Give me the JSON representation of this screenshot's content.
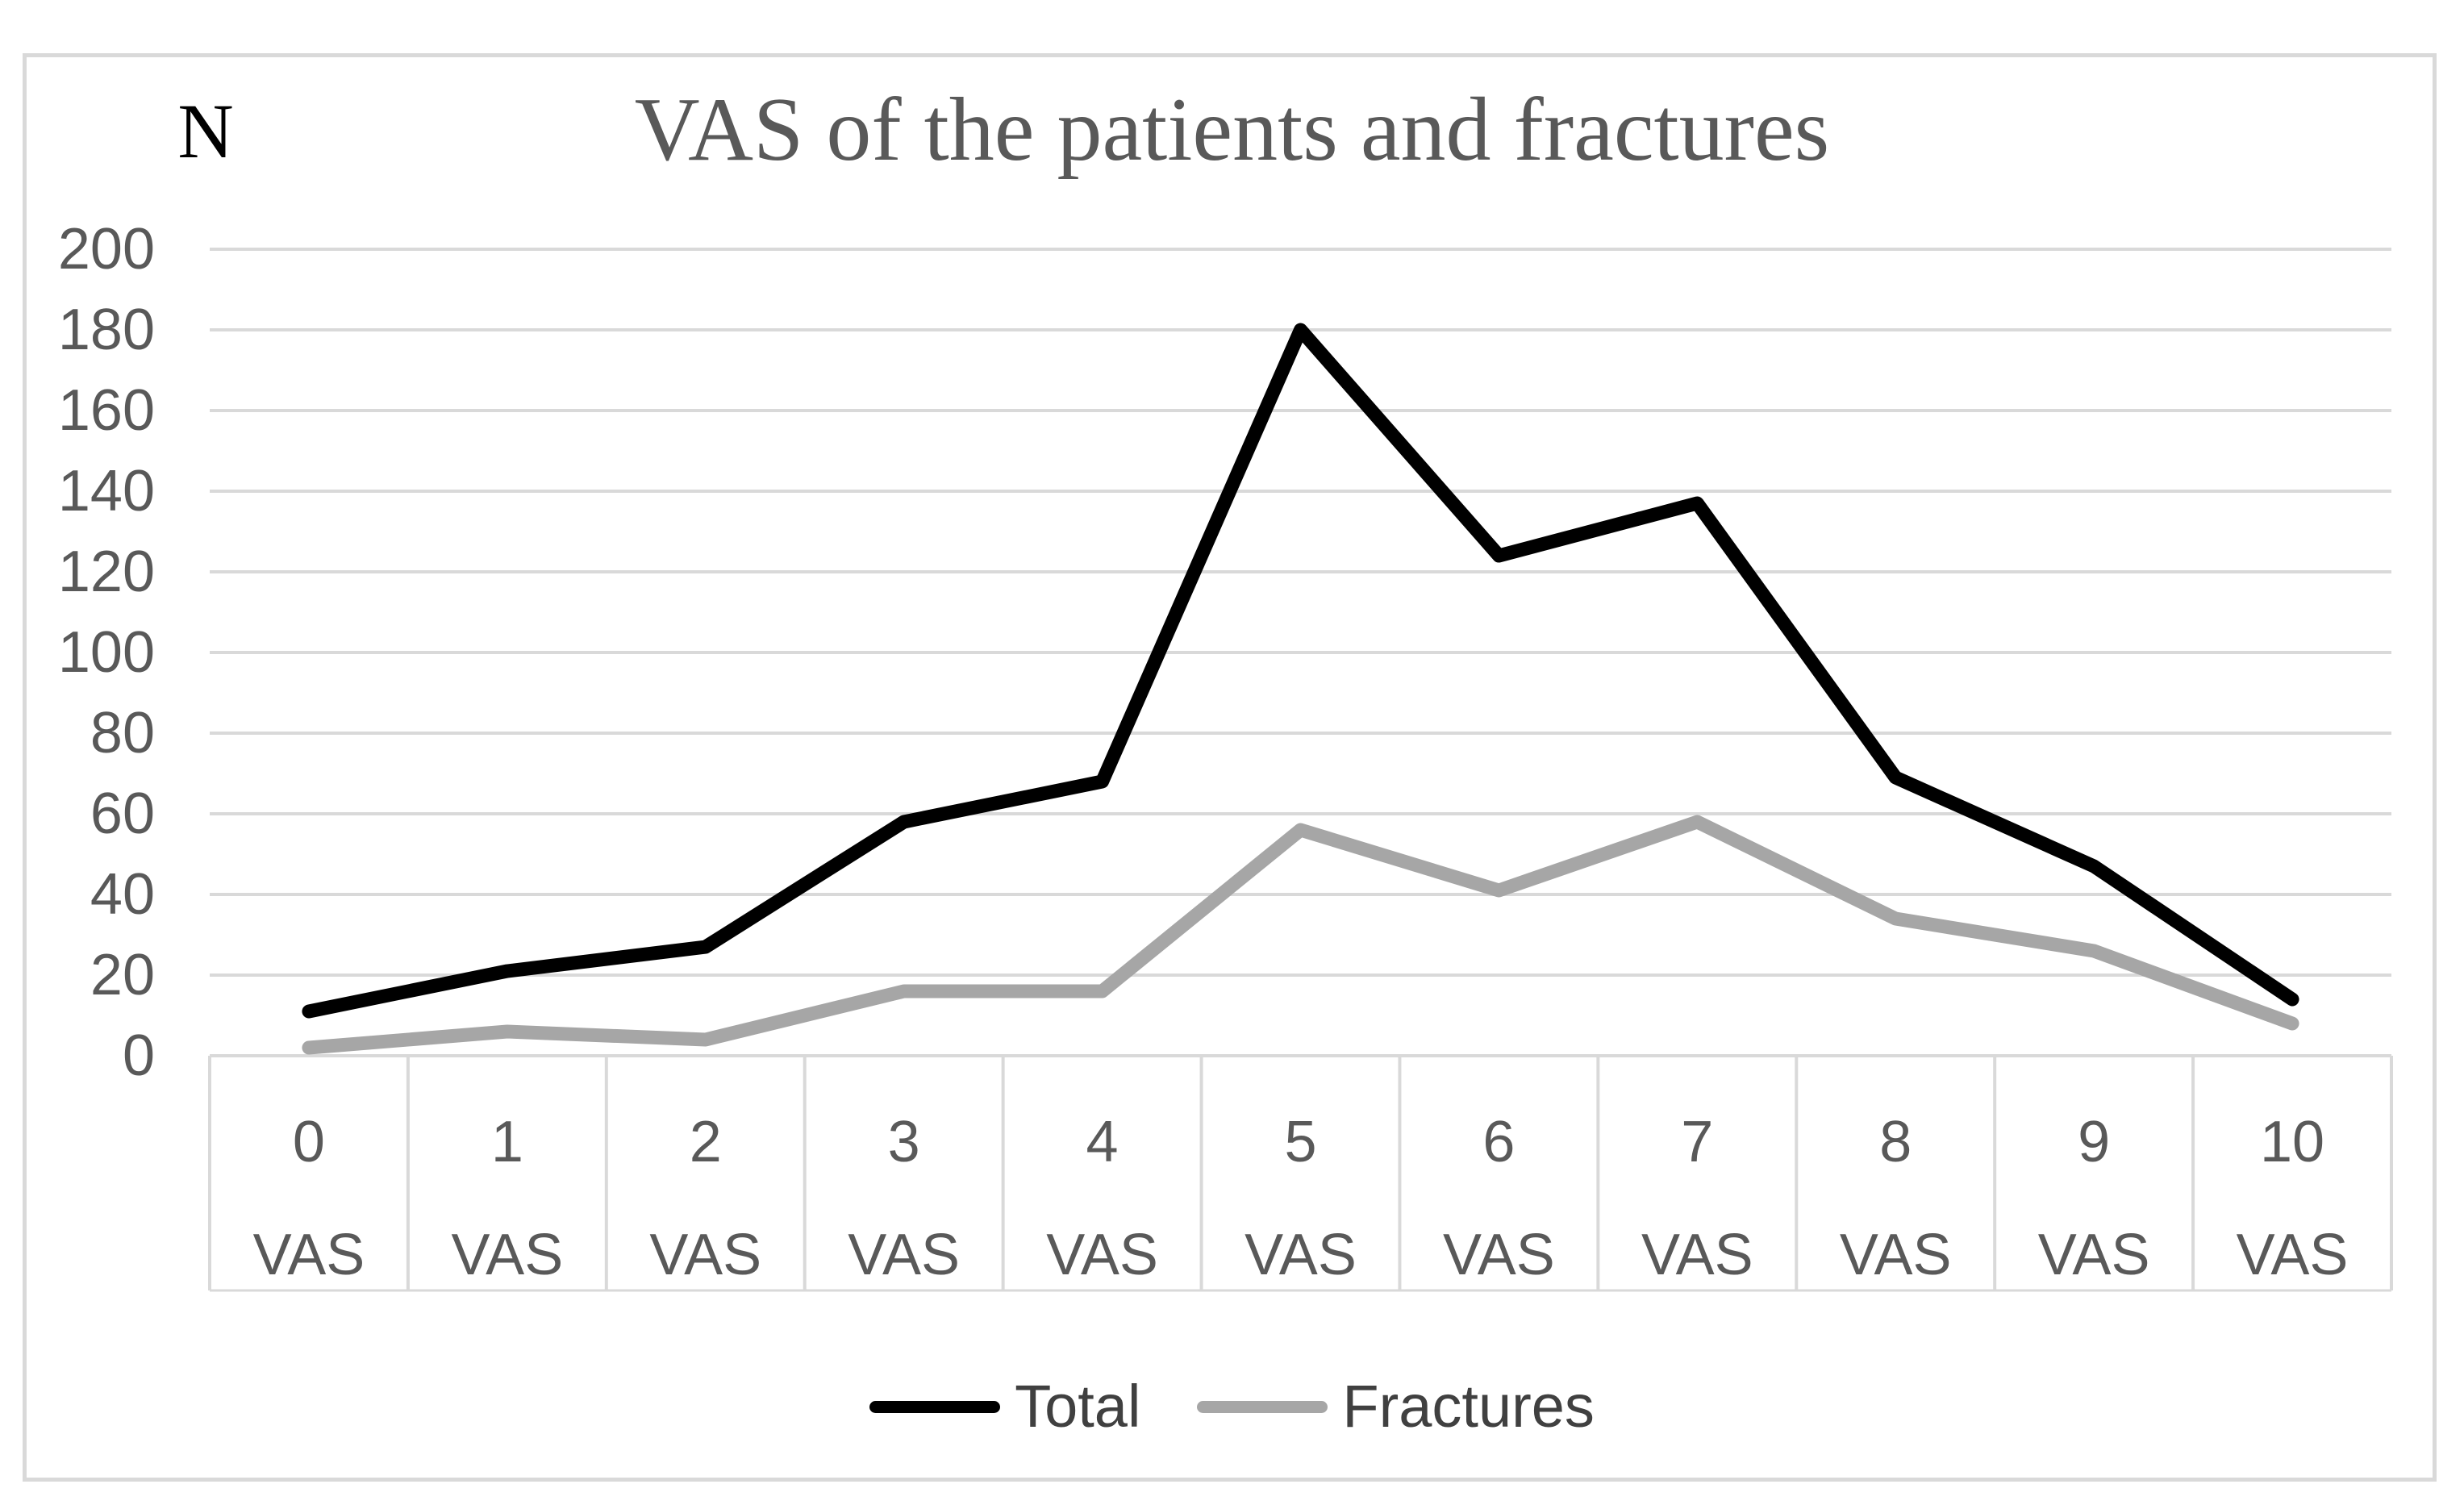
{
  "chart_data": {
    "type": "line",
    "title": "VAS of the patients and fractures",
    "y_axis_symbol": "N",
    "xlabel": "",
    "ylabel": "N",
    "ylim": [
      0,
      200
    ],
    "y_ticks": [
      0,
      20,
      40,
      60,
      80,
      100,
      120,
      140,
      160,
      180,
      200
    ],
    "categories": [
      "0",
      "1",
      "2",
      "3",
      "4",
      "5",
      "6",
      "7",
      "8",
      "9",
      "10"
    ],
    "category_unit": "VAS",
    "series": [
      {
        "name": "Total",
        "color": "#000000",
        "values": [
          11,
          21,
          27,
          58,
          68,
          180,
          124,
          137,
          69,
          47,
          14
        ]
      },
      {
        "name": "Fractures",
        "color": "#a6a6a6",
        "values": [
          2,
          6,
          4,
          16,
          16,
          56,
          41,
          58,
          34,
          26,
          8
        ]
      }
    ],
    "grid": true,
    "legend_position": "bottom",
    "colors": {
      "gridline": "#d9d9d9",
      "frame_border": "#d9d9d9",
      "axis_text": "#595959",
      "title_text": "#595959",
      "legend_text": "#404040",
      "background": "#ffffff"
    }
  }
}
